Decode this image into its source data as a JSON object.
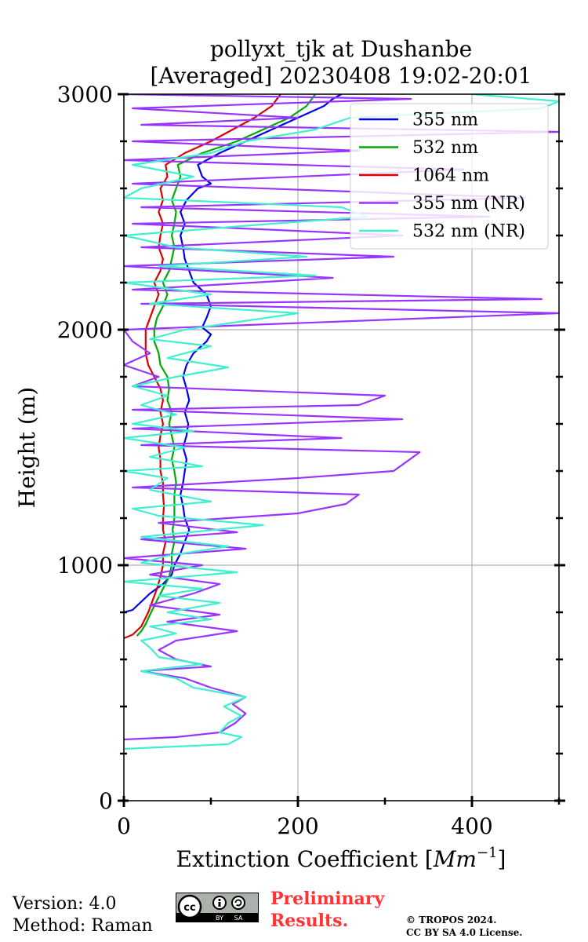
{
  "chart_data": {
    "type": "line",
    "title": [
      "pollyxt_tjk at Dushanbe",
      "[Averaged] 20230408 19:02-20:01"
    ],
    "xlabel_text": "Extinction Coefficient [",
    "xlabel_unit": "Mm",
    "xlabel_exp": "−1",
    "xlabel_close": "]",
    "ylabel": "Height (m)",
    "xlim": [
      0,
      500
    ],
    "ylim": [
      0,
      3000
    ],
    "xticks": [
      0,
      200,
      400
    ],
    "yticks": [
      0,
      1000,
      2000,
      3000
    ],
    "y_minor_step": 200,
    "x_minor_step": 100,
    "grid": true,
    "legend_position": "top-right",
    "series": [
      {
        "name": "355 nm",
        "color": "#0000ee",
        "points": [
          [
            0,
            800
          ],
          [
            10,
            810
          ],
          [
            20,
            845
          ],
          [
            30,
            880
          ],
          [
            45,
            920
          ],
          [
            55,
            960
          ],
          [
            58,
            1000
          ],
          [
            65,
            1050
          ],
          [
            70,
            1100
          ],
          [
            75,
            1150
          ],
          [
            70,
            1200
          ],
          [
            68,
            1250
          ],
          [
            65,
            1300
          ],
          [
            68,
            1350
          ],
          [
            70,
            1400
          ],
          [
            72,
            1450
          ],
          [
            68,
            1500
          ],
          [
            72,
            1550
          ],
          [
            74,
            1600
          ],
          [
            70,
            1650
          ],
          [
            75,
            1700
          ],
          [
            72,
            1750
          ],
          [
            68,
            1800
          ],
          [
            72,
            1850
          ],
          [
            80,
            1900
          ],
          [
            95,
            1950
          ],
          [
            100,
            1980
          ],
          [
            90,
            2010
          ],
          [
            95,
            2050
          ],
          [
            100,
            2100
          ],
          [
            95,
            2150
          ],
          [
            80,
            2200
          ],
          [
            75,
            2250
          ],
          [
            70,
            2300
          ],
          [
            68,
            2350
          ],
          [
            65,
            2400
          ],
          [
            70,
            2450
          ],
          [
            65,
            2500
          ],
          [
            72,
            2550
          ],
          [
            85,
            2600
          ],
          [
            100,
            2620
          ],
          [
            90,
            2650
          ],
          [
            85,
            2700
          ],
          [
            110,
            2750
          ],
          [
            140,
            2800
          ],
          [
            170,
            2850
          ],
          [
            200,
            2900
          ],
          [
            230,
            2950
          ],
          [
            240,
            2980
          ],
          [
            250,
            3000
          ]
        ]
      },
      {
        "name": "532 nm",
        "color": "#00aa00",
        "points": [
          [
            15,
            700
          ],
          [
            20,
            720
          ],
          [
            25,
            750
          ],
          [
            30,
            790
          ],
          [
            38,
            850
          ],
          [
            45,
            900
          ],
          [
            52,
            950
          ],
          [
            55,
            1000
          ],
          [
            55,
            1050
          ],
          [
            58,
            1100
          ],
          [
            56,
            1150
          ],
          [
            58,
            1200
          ],
          [
            58,
            1250
          ],
          [
            58,
            1300
          ],
          [
            60,
            1350
          ],
          [
            58,
            1400
          ],
          [
            55,
            1450
          ],
          [
            58,
            1500
          ],
          [
            55,
            1550
          ],
          [
            52,
            1600
          ],
          [
            55,
            1650
          ],
          [
            50,
            1700
          ],
          [
            52,
            1750
          ],
          [
            50,
            1800
          ],
          [
            42,
            1850
          ],
          [
            40,
            1900
          ],
          [
            35,
            1950
          ],
          [
            35,
            2000
          ],
          [
            38,
            2050
          ],
          [
            45,
            2100
          ],
          [
            50,
            2150
          ],
          [
            45,
            2200
          ],
          [
            52,
            2250
          ],
          [
            55,
            2300
          ],
          [
            58,
            2350
          ],
          [
            55,
            2400
          ],
          [
            58,
            2450
          ],
          [
            60,
            2500
          ],
          [
            55,
            2550
          ],
          [
            60,
            2600
          ],
          [
            65,
            2650
          ],
          [
            62,
            2700
          ],
          [
            90,
            2750
          ],
          [
            130,
            2800
          ],
          [
            160,
            2850
          ],
          [
            190,
            2900
          ],
          [
            210,
            2950
          ],
          [
            220,
            3000
          ]
        ]
      },
      {
        "name": "1064 nm",
        "color": "#dd0000",
        "points": [
          [
            0,
            690
          ],
          [
            10,
            705
          ],
          [
            20,
            740
          ],
          [
            28,
            800
          ],
          [
            33,
            850
          ],
          [
            38,
            900
          ],
          [
            42,
            950
          ],
          [
            45,
            1000
          ],
          [
            45,
            1050
          ],
          [
            48,
            1100
          ],
          [
            45,
            1150
          ],
          [
            45,
            1200
          ],
          [
            46,
            1250
          ],
          [
            45,
            1300
          ],
          [
            45,
            1350
          ],
          [
            42,
            1400
          ],
          [
            42,
            1450
          ],
          [
            40,
            1500
          ],
          [
            42,
            1550
          ],
          [
            45,
            1600
          ],
          [
            42,
            1650
          ],
          [
            45,
            1700
          ],
          [
            42,
            1750
          ],
          [
            35,
            1800
          ],
          [
            28,
            1850
          ],
          [
            25,
            1900
          ],
          [
            25,
            1950
          ],
          [
            25,
            2000
          ],
          [
            30,
            2050
          ],
          [
            35,
            2100
          ],
          [
            40,
            2150
          ],
          [
            35,
            2200
          ],
          [
            42,
            2250
          ],
          [
            45,
            2300
          ],
          [
            40,
            2350
          ],
          [
            42,
            2400
          ],
          [
            45,
            2450
          ],
          [
            40,
            2500
          ],
          [
            45,
            2550
          ],
          [
            42,
            2600
          ],
          [
            50,
            2650
          ],
          [
            48,
            2700
          ],
          [
            70,
            2750
          ],
          [
            100,
            2800
          ],
          [
            125,
            2850
          ],
          [
            150,
            2900
          ],
          [
            170,
            2950
          ],
          [
            180,
            3000
          ]
        ]
      },
      {
        "name": "355 nm (NR)",
        "color": "#9933ff",
        "points": [
          [
            0,
            260
          ],
          [
            60,
            270
          ],
          [
            110,
            290
          ],
          [
            128,
            330
          ],
          [
            140,
            370
          ],
          [
            125,
            410
          ],
          [
            140,
            440
          ],
          [
            100,
            480
          ],
          [
            70,
            520
          ],
          [
            20,
            550
          ],
          [
            100,
            570
          ],
          [
            60,
            600
          ],
          [
            40,
            640
          ],
          [
            60,
            680
          ],
          [
            130,
            720
          ],
          [
            50,
            760
          ],
          [
            110,
            790
          ],
          [
            30,
            830
          ],
          [
            80,
            880
          ],
          [
            110,
            920
          ],
          [
            30,
            960
          ],
          [
            90,
            1000
          ],
          [
            0,
            1030
          ],
          [
            140,
            1070
          ],
          [
            20,
            1110
          ],
          [
            130,
            1140
          ],
          [
            40,
            1180
          ],
          [
            200,
            1220
          ],
          [
            255,
            1260
          ],
          [
            270,
            1300
          ],
          [
            10,
            1330
          ],
          [
            200,
            1370
          ],
          [
            310,
            1400
          ],
          [
            340,
            1480
          ],
          [
            20,
            1510
          ],
          [
            250,
            1540
          ],
          [
            10,
            1580
          ],
          [
            320,
            1620
          ],
          [
            10,
            1660
          ],
          [
            270,
            1680
          ],
          [
            300,
            1720
          ],
          [
            10,
            1760
          ],
          [
            40,
            1800
          ],
          [
            0,
            1850
          ],
          [
            30,
            1900
          ],
          [
            10,
            1950
          ],
          [
            0,
            2000
          ],
          [
            500,
            2070
          ],
          [
            20,
            2110
          ],
          [
            480,
            2130
          ],
          [
            10,
            2170
          ],
          [
            240,
            2220
          ],
          [
            0,
            2270
          ],
          [
            310,
            2310
          ],
          [
            20,
            2350
          ],
          [
            320,
            2400
          ],
          [
            10,
            2450
          ],
          [
            420,
            2480
          ],
          [
            20,
            2520
          ],
          [
            460,
            2560
          ],
          [
            10,
            2620
          ],
          [
            390,
            2680
          ],
          [
            0,
            2720
          ],
          [
            270,
            2760
          ],
          [
            10,
            2800
          ],
          [
            500,
            2840
          ],
          [
            20,
            2870
          ],
          [
            200,
            2900
          ],
          [
            10,
            2940
          ],
          [
            330,
            2980
          ],
          [
            0,
            3000
          ]
        ]
      },
      {
        "name": "532 nm (NR)",
        "color": "#40f0d0",
        "points": [
          [
            0,
            220
          ],
          [
            120,
            240
          ],
          [
            135,
            270
          ],
          [
            110,
            290
          ],
          [
            120,
            330
          ],
          [
            135,
            360
          ],
          [
            115,
            400
          ],
          [
            140,
            440
          ],
          [
            80,
            480
          ],
          [
            60,
            520
          ],
          [
            20,
            550
          ],
          [
            90,
            580
          ],
          [
            40,
            610
          ],
          [
            30,
            650
          ],
          [
            20,
            680
          ],
          [
            60,
            710
          ],
          [
            30,
            740
          ],
          [
            100,
            770
          ],
          [
            50,
            800
          ],
          [
            110,
            840
          ],
          [
            40,
            870
          ],
          [
            90,
            900
          ],
          [
            0,
            930
          ],
          [
            130,
            970
          ],
          [
            20,
            1010
          ],
          [
            50,
            1040
          ],
          [
            120,
            1080
          ],
          [
            20,
            1120
          ],
          [
            160,
            1170
          ],
          [
            40,
            1210
          ],
          [
            10,
            1240
          ],
          [
            100,
            1270
          ],
          [
            30,
            1320
          ],
          [
            50,
            1370
          ],
          [
            0,
            1400
          ],
          [
            90,
            1420
          ],
          [
            30,
            1460
          ],
          [
            70,
            1500
          ],
          [
            0,
            1540
          ],
          [
            80,
            1570
          ],
          [
            10,
            1600
          ],
          [
            60,
            1640
          ],
          [
            20,
            1680
          ],
          [
            50,
            1720
          ],
          [
            10,
            1760
          ],
          [
            60,
            1800
          ],
          [
            120,
            1840
          ],
          [
            50,
            1880
          ],
          [
            100,
            1930
          ],
          [
            30,
            1960
          ],
          [
            70,
            2000
          ],
          [
            200,
            2070
          ],
          [
            30,
            2110
          ],
          [
            100,
            2150
          ],
          [
            0,
            2200
          ],
          [
            220,
            2230
          ],
          [
            40,
            2270
          ],
          [
            210,
            2310
          ],
          [
            60,
            2350
          ],
          [
            0,
            2400
          ],
          [
            170,
            2450
          ],
          [
            280,
            2480
          ],
          [
            250,
            2520
          ],
          [
            0,
            2560
          ],
          [
            20,
            2600
          ],
          [
            80,
            2650
          ],
          [
            10,
            2700
          ],
          [
            100,
            2750
          ],
          [
            140,
            2800
          ],
          [
            220,
            2850
          ],
          [
            260,
            2900
          ],
          [
            480,
            2940
          ],
          [
            500,
            2970
          ],
          [
            400,
            3000
          ]
        ]
      }
    ]
  },
  "footer": {
    "version": "Version: 4.0",
    "method": "Method: Raman",
    "preliminary_line1": "Preliminary",
    "preliminary_line2": "Results.",
    "copyright_line1": "© TROPOS 2024.",
    "copyright_line2": "CC BY SA 4.0 License.",
    "cc_label": "cc",
    "by_label": "BY",
    "sa_label": "SA"
  }
}
